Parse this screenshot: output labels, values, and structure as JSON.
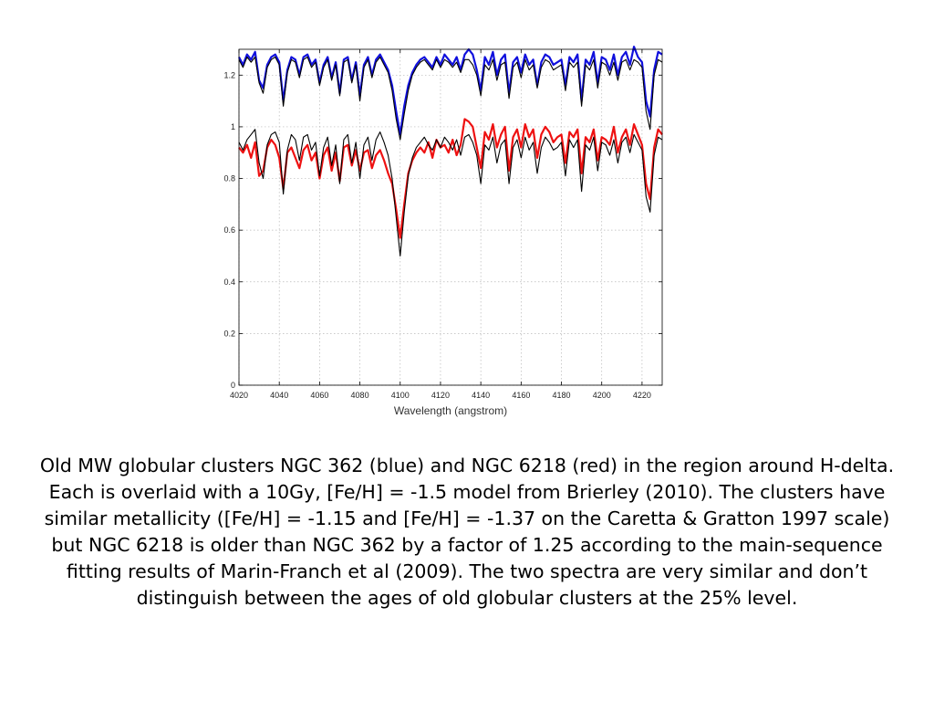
{
  "caption": "Old MW globular clusters NGC 362 (blue) and NGC 6218 (red) in the region around H-delta. Each is overlaid with a 10Gy, [Fe/H] = -1.5 model from Brierley (2010). The clusters have similar metallicity ([Fe/H] = -1.15 and [Fe/H] = -1.37 on the Caretta & Gratton 1997 scale) but NGC 6218 is older than NGC 362 by a factor of 1.25 according to the main-sequence fitting results of Marin-Franch et al (2009). The two spectra are very similar and don’t distinguish between the ages of old globular clusters at the 25% level.",
  "chart_data": {
    "type": "line",
    "title": "",
    "xlabel": "Wavelength (angstrom)",
    "ylabel": "",
    "xlim": [
      4020,
      4230
    ],
    "ylim": [
      0,
      1.3
    ],
    "xticks": [
      4020,
      4040,
      4060,
      4080,
      4100,
      4120,
      4140,
      4160,
      4180,
      4200,
      4220
    ],
    "yticks": [
      0,
      0.2,
      0.4,
      0.6,
      0.8,
      1,
      1.2
    ],
    "ytick_labels": [
      "0",
      "0.2",
      "0.4",
      "0.6",
      "0.8",
      "1",
      "1.2"
    ],
    "grid": true,
    "legend": "none",
    "x": [
      4020,
      4022,
      4024,
      4026,
      4028,
      4030,
      4032,
      4034,
      4036,
      4038,
      4040,
      4042,
      4044,
      4046,
      4048,
      4050,
      4052,
      4054,
      4056,
      4058,
      4060,
      4062,
      4064,
      4066,
      4068,
      4070,
      4072,
      4074,
      4076,
      4078,
      4080,
      4082,
      4084,
      4086,
      4088,
      4090,
      4092,
      4094,
      4096,
      4098,
      4100,
      4102,
      4104,
      4106,
      4108,
      4110,
      4112,
      4114,
      4116,
      4118,
      4120,
      4122,
      4124,
      4126,
      4128,
      4130,
      4132,
      4134,
      4136,
      4138,
      4140,
      4142,
      4144,
      4146,
      4148,
      4150,
      4152,
      4154,
      4156,
      4158,
      4160,
      4162,
      4164,
      4166,
      4168,
      4170,
      4172,
      4174,
      4176,
      4178,
      4180,
      4182,
      4184,
      4186,
      4188,
      4190,
      4192,
      4194,
      4196,
      4198,
      4200,
      4202,
      4204,
      4206,
      4208,
      4210,
      4212,
      4214,
      4216,
      4218,
      4220,
      4222,
      4224,
      4226,
      4228,
      4230
    ],
    "series": [
      {
        "color": "#1010dd",
        "values": [
          1.27,
          1.24,
          1.28,
          1.26,
          1.29,
          1.18,
          1.15,
          1.24,
          1.27,
          1.28,
          1.25,
          1.1,
          1.22,
          1.27,
          1.26,
          1.2,
          1.27,
          1.28,
          1.24,
          1.26,
          1.17,
          1.24,
          1.27,
          1.19,
          1.25,
          1.13,
          1.26,
          1.27,
          1.18,
          1.25,
          1.12,
          1.24,
          1.27,
          1.2,
          1.26,
          1.28,
          1.25,
          1.22,
          1.16,
          1.06,
          0.97,
          1.08,
          1.16,
          1.21,
          1.24,
          1.26,
          1.27,
          1.25,
          1.23,
          1.27,
          1.24,
          1.28,
          1.26,
          1.24,
          1.27,
          1.22,
          1.28,
          1.3,
          1.28,
          1.22,
          1.14,
          1.27,
          1.24,
          1.29,
          1.2,
          1.26,
          1.28,
          1.13,
          1.25,
          1.27,
          1.21,
          1.28,
          1.24,
          1.26,
          1.16,
          1.25,
          1.28,
          1.27,
          1.24,
          1.25,
          1.26,
          1.16,
          1.27,
          1.25,
          1.28,
          1.1,
          1.26,
          1.24,
          1.29,
          1.17,
          1.27,
          1.26,
          1.22,
          1.28,
          1.2,
          1.27,
          1.29,
          1.24,
          1.31,
          1.27,
          1.25,
          1.1,
          1.04,
          1.22,
          1.29,
          1.28
        ]
      },
      {
        "color": "#000000",
        "values": [
          1.26,
          1.23,
          1.27,
          1.25,
          1.27,
          1.17,
          1.13,
          1.23,
          1.26,
          1.27,
          1.24,
          1.08,
          1.21,
          1.26,
          1.25,
          1.19,
          1.26,
          1.27,
          1.23,
          1.25,
          1.16,
          1.23,
          1.26,
          1.18,
          1.24,
          1.12,
          1.25,
          1.26,
          1.17,
          1.24,
          1.1,
          1.23,
          1.26,
          1.19,
          1.25,
          1.27,
          1.24,
          1.21,
          1.14,
          1.03,
          0.95,
          1.05,
          1.14,
          1.2,
          1.23,
          1.25,
          1.26,
          1.24,
          1.22,
          1.26,
          1.23,
          1.26,
          1.25,
          1.23,
          1.25,
          1.21,
          1.26,
          1.26,
          1.24,
          1.2,
          1.12,
          1.24,
          1.22,
          1.26,
          1.18,
          1.24,
          1.25,
          1.11,
          1.23,
          1.25,
          1.19,
          1.26,
          1.22,
          1.24,
          1.15,
          1.23,
          1.26,
          1.25,
          1.22,
          1.23,
          1.24,
          1.14,
          1.25,
          1.23,
          1.25,
          1.08,
          1.24,
          1.22,
          1.26,
          1.15,
          1.25,
          1.24,
          1.2,
          1.25,
          1.18,
          1.25,
          1.26,
          1.22,
          1.26,
          1.25,
          1.23,
          1.06,
          0.99,
          1.2,
          1.26,
          1.25
        ]
      },
      {
        "color": "#ee1111",
        "values": [
          0.92,
          0.9,
          0.93,
          0.88,
          0.94,
          0.81,
          0.83,
          0.92,
          0.95,
          0.93,
          0.88,
          0.76,
          0.9,
          0.92,
          0.88,
          0.84,
          0.91,
          0.93,
          0.87,
          0.9,
          0.8,
          0.89,
          0.92,
          0.83,
          0.9,
          0.79,
          0.92,
          0.93,
          0.85,
          0.91,
          0.83,
          0.9,
          0.91,
          0.84,
          0.89,
          0.91,
          0.87,
          0.82,
          0.78,
          0.68,
          0.57,
          0.7,
          0.82,
          0.87,
          0.9,
          0.92,
          0.9,
          0.94,
          0.88,
          0.95,
          0.92,
          0.93,
          0.9,
          0.95,
          0.89,
          0.93,
          1.03,
          1.02,
          1.0,
          0.92,
          0.84,
          0.98,
          0.95,
          1.01,
          0.92,
          0.97,
          1.0,
          0.83,
          0.96,
          0.99,
          0.92,
          1.01,
          0.96,
          0.99,
          0.88,
          0.97,
          1.0,
          0.98,
          0.94,
          0.96,
          0.97,
          0.86,
          0.98,
          0.96,
          0.99,
          0.82,
          0.96,
          0.94,
          0.99,
          0.87,
          0.96,
          0.95,
          0.93,
          1.0,
          0.9,
          0.96,
          0.99,
          0.93,
          1.01,
          0.97,
          0.93,
          0.78,
          0.72,
          0.92,
          0.99,
          0.97
        ]
      },
      {
        "color": "#000000",
        "values": [
          0.94,
          0.91,
          0.95,
          0.97,
          0.99,
          0.86,
          0.8,
          0.93,
          0.97,
          0.98,
          0.94,
          0.74,
          0.91,
          0.97,
          0.95,
          0.87,
          0.96,
          0.97,
          0.91,
          0.94,
          0.81,
          0.92,
          0.96,
          0.85,
          0.93,
          0.78,
          0.95,
          0.97,
          0.86,
          0.94,
          0.8,
          0.93,
          0.96,
          0.87,
          0.95,
          0.98,
          0.94,
          0.89,
          0.8,
          0.65,
          0.5,
          0.67,
          0.81,
          0.88,
          0.92,
          0.94,
          0.96,
          0.93,
          0.91,
          0.95,
          0.92,
          0.96,
          0.94,
          0.91,
          0.95,
          0.89,
          0.96,
          0.97,
          0.94,
          0.89,
          0.78,
          0.93,
          0.91,
          0.96,
          0.86,
          0.93,
          0.95,
          0.78,
          0.92,
          0.95,
          0.88,
          0.96,
          0.91,
          0.94,
          0.82,
          0.92,
          0.96,
          0.94,
          0.91,
          0.92,
          0.94,
          0.81,
          0.95,
          0.92,
          0.95,
          0.75,
          0.93,
          0.91,
          0.96,
          0.83,
          0.94,
          0.93,
          0.89,
          0.95,
          0.86,
          0.94,
          0.96,
          0.9,
          0.97,
          0.94,
          0.91,
          0.73,
          0.67,
          0.89,
          0.96,
          0.95
        ]
      }
    ]
  }
}
